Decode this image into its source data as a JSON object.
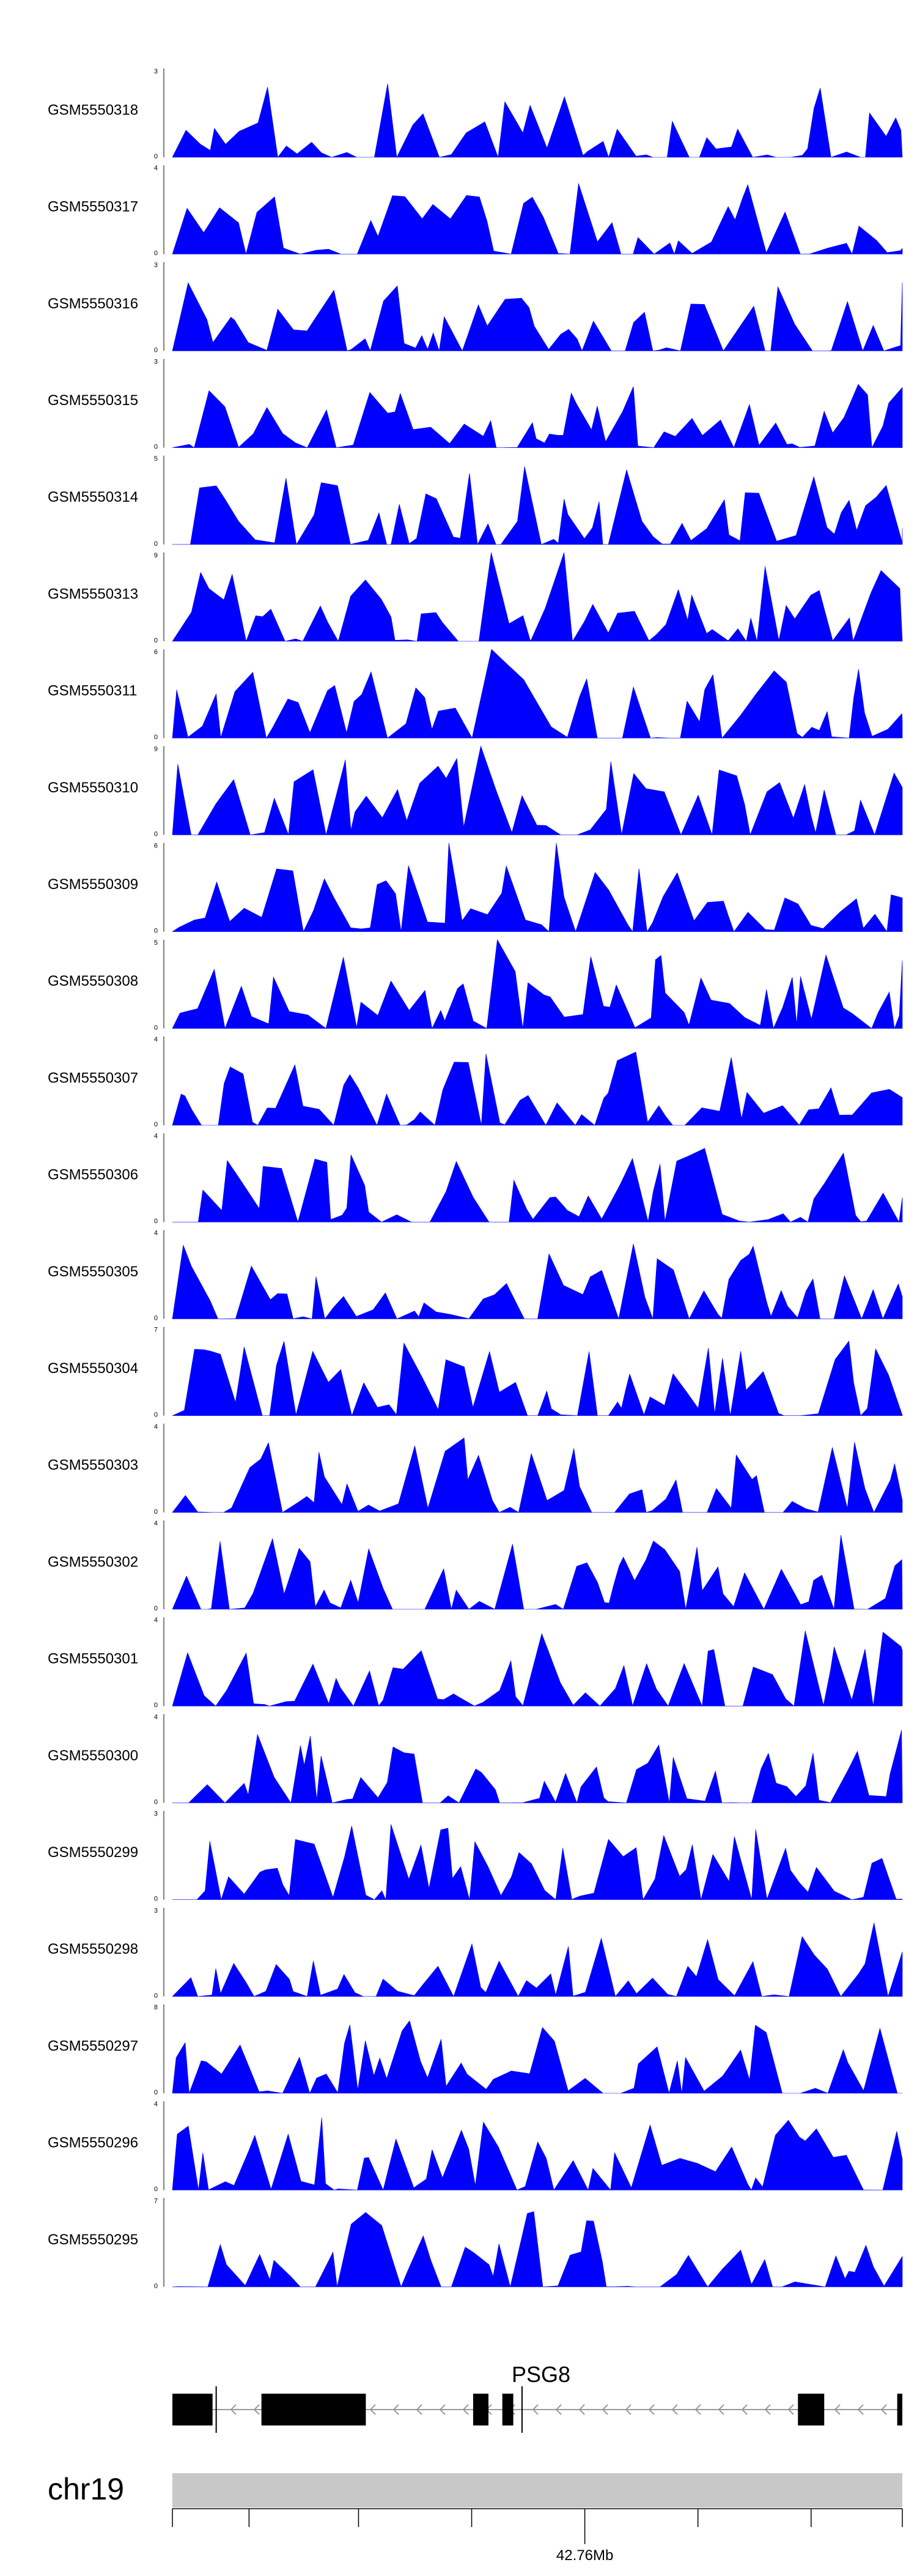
{
  "colors": {
    "signal": "#0000ff",
    "gene": "#000000",
    "ideogram": "#c8c8c8",
    "axis": "#000000"
  },
  "chart_data": {
    "type": "area",
    "tracks": [
      {
        "name": "GSM5550318",
        "ymax": "3",
        "ymin": "0"
      },
      {
        "name": "GSM5550317",
        "ymax": "4",
        "ymin": "0"
      },
      {
        "name": "GSM5550316",
        "ymax": "3",
        "ymin": "0"
      },
      {
        "name": "GSM5550315",
        "ymax": "3",
        "ymin": "0"
      },
      {
        "name": "GSM5550314",
        "ymax": "5",
        "ymin": "0"
      },
      {
        "name": "GSM5550313",
        "ymax": "9",
        "ymin": "0"
      },
      {
        "name": "GSM5550311",
        "ymax": "6",
        "ymin": "0"
      },
      {
        "name": "GSM5550310",
        "ymax": "9",
        "ymin": "0"
      },
      {
        "name": "GSM5550309",
        "ymax": "6",
        "ymin": "0"
      },
      {
        "name": "GSM5550308",
        "ymax": "5",
        "ymin": "0"
      },
      {
        "name": "GSM5550307",
        "ymax": "4",
        "ymin": "0"
      },
      {
        "name": "GSM5550306",
        "ymax": "4",
        "ymin": "0"
      },
      {
        "name": "GSM5550305",
        "ymax": "4",
        "ymin": "0"
      },
      {
        "name": "GSM5550304",
        "ymax": "7",
        "ymin": "0"
      },
      {
        "name": "GSM5550303",
        "ymax": "4",
        "ymin": "0"
      },
      {
        "name": "GSM5550302",
        "ymax": "4",
        "ymin": "0"
      },
      {
        "name": "GSM5550301",
        "ymax": "4",
        "ymin": "0"
      },
      {
        "name": "GSM5550300",
        "ymax": "4",
        "ymin": "0"
      },
      {
        "name": "GSM5550299",
        "ymax": "3",
        "ymin": "0"
      },
      {
        "name": "GSM5550298",
        "ymax": "3",
        "ymin": "0"
      },
      {
        "name": "GSM5550297",
        "ymax": "8",
        "ymin": "0"
      },
      {
        "name": "GSM5550296",
        "ymax": "4",
        "ymin": "0"
      },
      {
        "name": "GSM5550295",
        "ymax": "7",
        "ymin": "0"
      }
    ],
    "gene": {
      "name": "PSG8",
      "strand": "-",
      "exons": [
        [
          0.0,
          0.055
        ],
        [
          0.122,
          0.265
        ],
        [
          0.412,
          0.433
        ],
        [
          0.452,
          0.467
        ],
        [
          0.857,
          0.893
        ],
        [
          0.993,
          1.0
        ]
      ]
    },
    "chromosome": "chr19",
    "x_axis": {
      "tick_label": "42.76Mb",
      "major_tick_fraction": 0.565
    }
  }
}
